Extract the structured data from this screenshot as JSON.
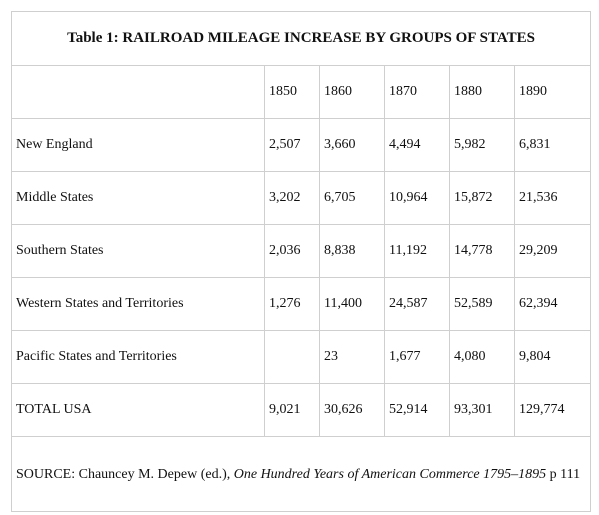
{
  "table": {
    "title": "Table 1: RAILROAD MILEAGE INCREASE BY GROUPS OF STATES",
    "years": [
      "1850",
      "1860",
      "1870",
      "1880",
      "1890"
    ],
    "rows": [
      {
        "region": "New England",
        "values": [
          "2,507",
          "3,660",
          "4,494",
          "5,982",
          "6,831"
        ]
      },
      {
        "region": "Middle States",
        "values": [
          "3,202",
          "6,705",
          "10,964",
          "15,872",
          "21,536"
        ]
      },
      {
        "region": "Southern States",
        "values": [
          "2,036",
          "8,838",
          "11,192",
          "14,778",
          "29,209"
        ]
      },
      {
        "region": "Western States and Territories",
        "values": [
          "1,276",
          "11,400",
          "24,587",
          "52,589",
          "62,394"
        ]
      },
      {
        "region": "Pacific States and Territories",
        "values": [
          "",
          "23",
          "1,677",
          "4,080",
          "9,804"
        ]
      },
      {
        "region": "TOTAL USA",
        "values": [
          "9,021",
          "30,626",
          "52,914",
          "93,301",
          "129,774"
        ]
      }
    ],
    "source": {
      "prefix": "SOURCE: Chauncey M. Depew (ed.), ",
      "book_title": "One Hundred Years of American Commerce 1795–1895",
      "suffix": " p 111"
    }
  }
}
